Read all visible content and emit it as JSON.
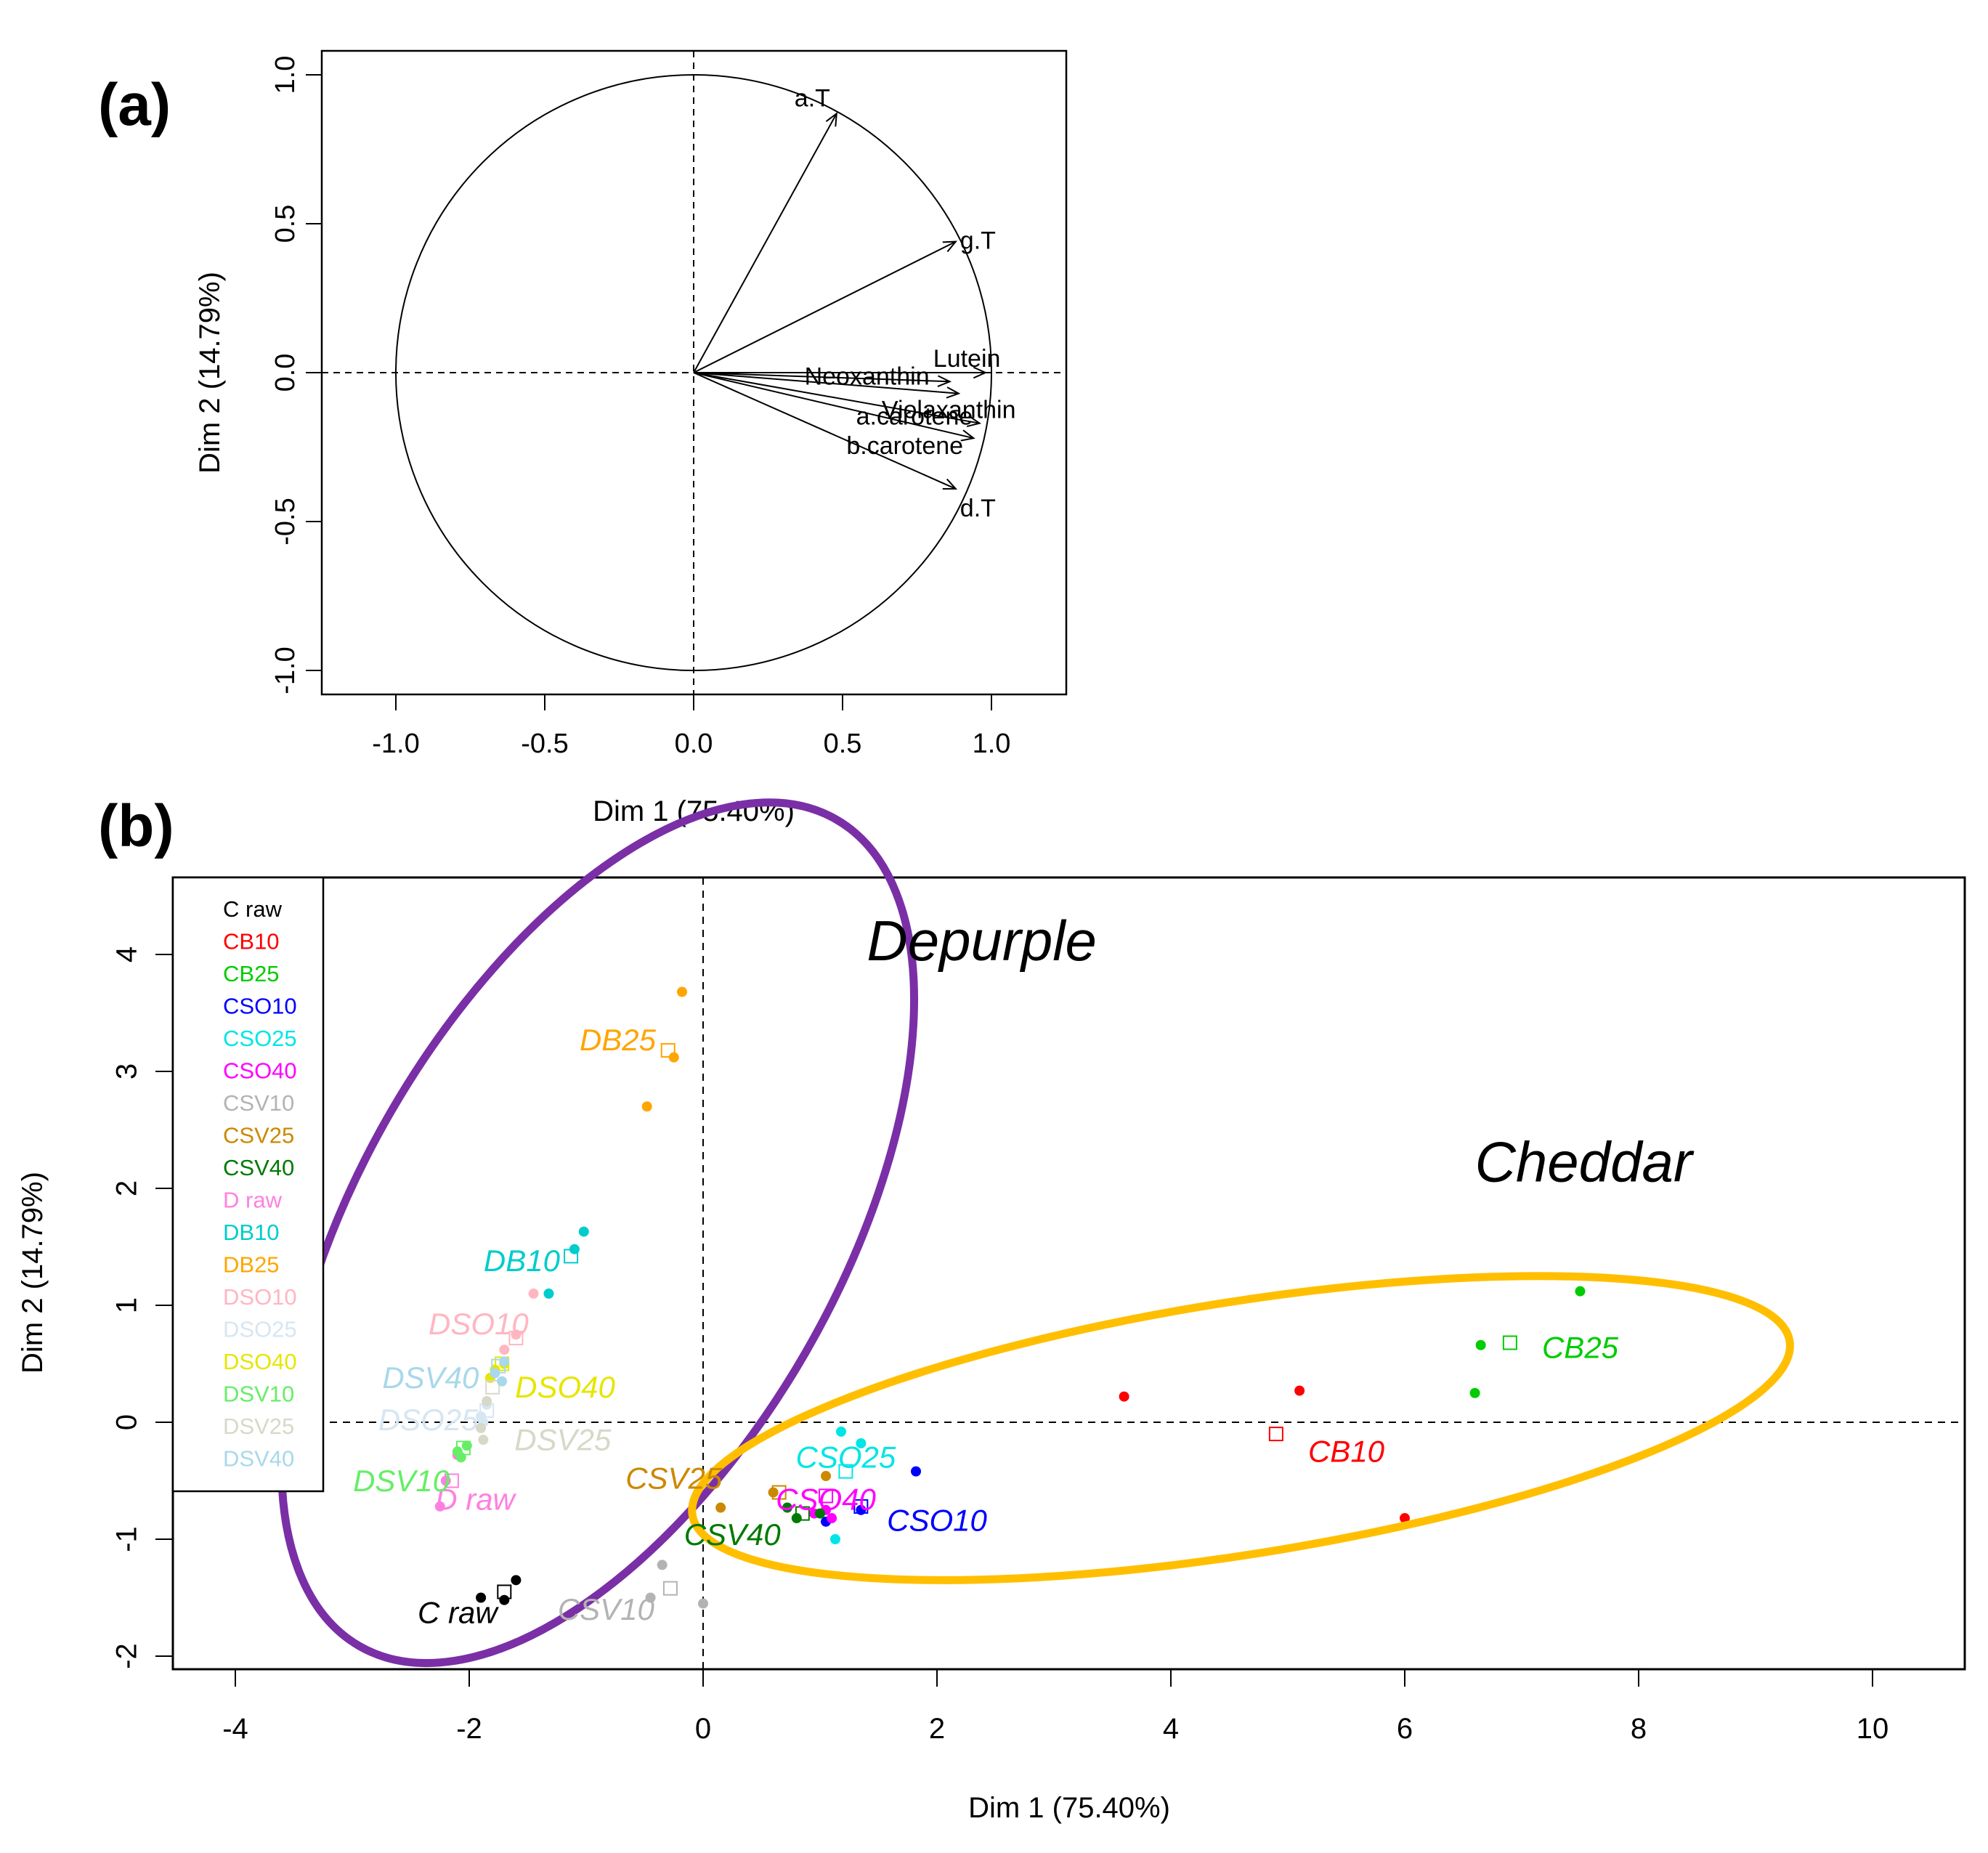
{
  "colors": {
    "C raw": "#000000",
    "CB10": "#ff0000",
    "CB25": "#00cc00",
    "CSO10": "#0000ff",
    "CSO25": "#00e5e5",
    "CSO40": "#ff00ff",
    "CSV10": "#b3b3b3",
    "CSV25": "#cc8800",
    "CSV40": "#007a00",
    "D raw": "#ff80e0",
    "DB10": "#00cccc",
    "DB25": "#ffa500",
    "DSO10": "#ffb6c1",
    "DSO25": "#d6e6f2",
    "DSO40": "#e6e600",
    "DSV10": "#66ee66",
    "DSV25": "#d8d8c8",
    "DSV40": "#a8d8ea",
    "depurple_ellipse": "#7a2fa6",
    "cheddar_ellipse": "#ffbf00"
  },
  "chart_data": [
    {
      "panel": "(a)",
      "type": "scatter",
      "subtype": "pca-correlation-circle",
      "xlabel": "Dim 1 (75.40%)",
      "ylabel": "Dim 2 (14.79%)",
      "xlim": [
        -1.25,
        1.25
      ],
      "ylim": [
        -1.08,
        1.08
      ],
      "x_ticks": [
        "-1.0",
        "-0.5",
        "0.0",
        "0.5",
        "1.0"
      ],
      "y_ticks": [
        "-1.0",
        "-0.5",
        "0.0",
        "0.5",
        "1.0"
      ],
      "variables": [
        {
          "name": "a.T",
          "x": 0.48,
          "y": 0.87
        },
        {
          "name": "g.T",
          "x": 0.88,
          "y": 0.44
        },
        {
          "name": "Lutein",
          "x": 0.98,
          "y": 0.0
        },
        {
          "name": "Neoxanthin",
          "x": 0.86,
          "y": -0.03
        },
        {
          "name": "Violaxanthin",
          "x": 0.89,
          "y": -0.07
        },
        {
          "name": "a.carotene",
          "x": 0.96,
          "y": -0.17
        },
        {
          "name": "b.carotene",
          "x": 0.94,
          "y": -0.22
        },
        {
          "name": "d.T",
          "x": 0.88,
          "y": -0.39
        }
      ]
    },
    {
      "panel": "(b)",
      "type": "scatter",
      "subtype": "pca-individuals",
      "xlabel": "Dim 1 (75.40%)",
      "ylabel": "Dim 2 (14.79%)",
      "xlim": [
        -4.5,
        10.8
      ],
      "ylim": [
        -2.2,
        4.6
      ],
      "x_ticks": [
        "-4",
        "-2",
        "0",
        "2",
        "4",
        "6",
        "8",
        "10"
      ],
      "y_ticks": [
        "-2",
        "-1",
        "0",
        "1",
        "2",
        "3",
        "4"
      ],
      "legend": [
        "C raw",
        "CB10",
        "CB25",
        "CSO10",
        "CSO25",
        "CSO40",
        "CSV10",
        "CSV25",
        "CSV40",
        "D raw",
        "DB10",
        "DB25",
        "DSO10",
        "DSO25",
        "DSO40",
        "DSV10",
        "DSV25",
        "DSV40"
      ],
      "legend_position": "top-left",
      "groups": [
        {
          "name": "C raw",
          "centroid": [
            -1.7,
            -1.45
          ],
          "points": [
            [
              -1.9,
              -1.5
            ],
            [
              -1.7,
              -1.52
            ],
            [
              -1.6,
              -1.35
            ]
          ],
          "label_at": [
            -2.1,
            -1.65
          ]
        },
        {
          "name": "CB10",
          "centroid": [
            4.9,
            -0.1
          ],
          "points": [
            [
              3.6,
              0.22
            ],
            [
              5.1,
              0.27
            ],
            [
              6.0,
              -0.82
            ]
          ],
          "label_at": [
            5.5,
            -0.27
          ]
        },
        {
          "name": "CB25",
          "centroid": [
            6.9,
            0.68
          ],
          "points": [
            [
              7.5,
              1.12
            ],
            [
              6.65,
              0.66
            ],
            [
              6.6,
              0.25
            ]
          ],
          "label_at": [
            7.5,
            0.62
          ]
        },
        {
          "name": "CSO10",
          "centroid": [
            1.35,
            -0.72
          ],
          "points": [
            [
              1.82,
              -0.42
            ],
            [
              1.35,
              -0.75
            ],
            [
              1.05,
              -0.85
            ]
          ],
          "label_at": [
            2.0,
            -0.86
          ]
        },
        {
          "name": "CSO25",
          "centroid": [
            1.22,
            -0.42
          ],
          "points": [
            [
              1.18,
              -0.08
            ],
            [
              1.35,
              -0.18
            ],
            [
              1.13,
              -1.0
            ]
          ],
          "label_at": [
            1.22,
            -0.32
          ]
        },
        {
          "name": "CSO40",
          "centroid": [
            1.05,
            -0.63
          ],
          "points": [
            [
              1.05,
              -0.75
            ],
            [
              0.95,
              -0.78
            ],
            [
              1.1,
              -0.82
            ]
          ],
          "label_at": [
            1.05,
            -0.68
          ]
        },
        {
          "name": "CSV10",
          "centroid": [
            -0.28,
            -1.42
          ],
          "points": [
            [
              -0.35,
              -1.22
            ],
            [
              -0.45,
              -1.5
            ],
            [
              0.0,
              -1.55
            ]
          ],
          "label_at": [
            -0.83,
            -1.62
          ]
        },
        {
          "name": "CSV25",
          "centroid": [
            0.65,
            -0.6
          ],
          "points": [
            [
              0.6,
              -0.6
            ],
            [
              0.15,
              -0.73
            ],
            [
              1.05,
              -0.46
            ]
          ],
          "label_at": [
            -0.25,
            -0.5
          ]
        },
        {
          "name": "CSV40",
          "centroid": [
            0.85,
            -0.78
          ],
          "points": [
            [
              0.72,
              -0.73
            ],
            [
              0.8,
              -0.82
            ],
            [
              1.0,
              -0.78
            ]
          ],
          "label_at": [
            0.25,
            -0.98
          ]
        },
        {
          "name": "D raw",
          "centroid": [
            -2.15,
            -0.5
          ],
          "points": [
            [
              -2.1,
              -0.28
            ],
            [
              -2.2,
              -0.5
            ],
            [
              -2.25,
              -0.72
            ]
          ],
          "label_at": [
            -1.95,
            -0.68
          ]
        },
        {
          "name": "DB10",
          "centroid": [
            -1.13,
            1.42
          ],
          "points": [
            [
              -1.02,
              1.63
            ],
            [
              -1.1,
              1.48
            ],
            [
              -1.32,
              1.1
            ]
          ],
          "label_at": [
            -1.55,
            1.36
          ]
        },
        {
          "name": "DB25",
          "centroid": [
            -0.3,
            3.18
          ],
          "points": [
            [
              -0.18,
              3.68
            ],
            [
              -0.25,
              3.12
            ],
            [
              -0.48,
              2.7
            ]
          ],
          "label_at": [
            -0.73,
            3.25
          ]
        },
        {
          "name": "DSO10",
          "centroid": [
            -1.6,
            0.72
          ],
          "points": [
            [
              -1.45,
              1.1
            ],
            [
              -1.6,
              0.75
            ],
            [
              -1.7,
              0.62
            ]
          ],
          "label_at": [
            -1.92,
            0.82
          ]
        },
        {
          "name": "DSO25",
          "centroid": [
            -1.85,
            0.1
          ],
          "points": [
            [
              -1.85,
              0.15
            ],
            [
              -1.9,
              0.05
            ],
            [
              -1.88,
              0.0
            ]
          ],
          "label_at": [
            -2.35,
            0.0
          ]
        },
        {
          "name": "DSO40",
          "centroid": [
            -1.72,
            0.5
          ],
          "points": [
            [
              -1.7,
              0.5
            ],
            [
              -1.78,
              0.45
            ],
            [
              -1.82,
              0.38
            ]
          ],
          "label_at": [
            -1.18,
            0.28
          ]
        },
        {
          "name": "DSV10",
          "centroid": [
            -2.05,
            -0.22
          ],
          "points": [
            [
              -2.07,
              -0.3
            ],
            [
              -2.02,
              -0.2
            ],
            [
              -2.1,
              -0.25
            ]
          ],
          "label_at": [
            -2.58,
            -0.52
          ]
        },
        {
          "name": "DSV25",
          "centroid": [
            -1.8,
            0.3
          ],
          "points": [
            [
              -1.85,
              0.18
            ],
            [
              -1.9,
              -0.05
            ],
            [
              -1.88,
              -0.15
            ]
          ],
          "label_at": [
            -1.2,
            -0.17
          ]
        },
        {
          "name": "DSV40",
          "centroid": [
            -1.75,
            0.48
          ],
          "points": [
            [
              -1.7,
              0.52
            ],
            [
              -1.78,
              0.42
            ],
            [
              -1.72,
              0.35
            ]
          ],
          "label_at": [
            -2.33,
            0.36
          ]
        }
      ],
      "annotations": [
        {
          "text": "Depurple",
          "at": [
            1.4,
            3.95
          ],
          "ellipse": {
            "cx": -0.9,
            "cy": 1.62,
            "rx": 2.05,
            "ry": 4.08,
            "angle": -30
          }
        },
        {
          "text": "Cheddar",
          "at": [
            6.6,
            2.06
          ],
          "ellipse": {
            "cx": 4.6,
            "cy": -0.05,
            "rx": 4.75,
            "ry": 1.08,
            "angle": 9
          }
        }
      ]
    }
  ]
}
